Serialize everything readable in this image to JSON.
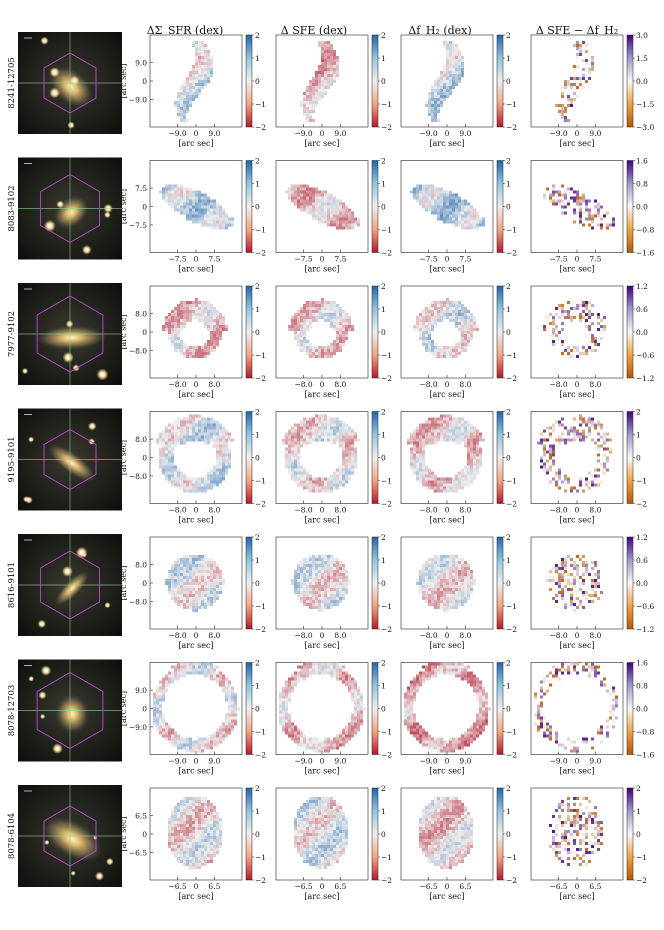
{
  "figure": {
    "column_headers": [
      "ΔΣ_SFR (dex)",
      "Δ SFE (dex)",
      "Δf_H₂ (dex)",
      "Δ SFE − Δf_H₂"
    ],
    "axis": {
      "xlabel": "[arc sec]",
      "ylabel": "[arc sec]"
    },
    "div_colorbar_ticks": [
      "2",
      "1",
      "0",
      "−1",
      "−2"
    ],
    "colors": {
      "diverging_low": "#b2182b",
      "diverging_mid": "#eeeeee",
      "diverging_high": "#2166ac",
      "puor_low": "#b35806",
      "puor_mid": "#f7f7f7",
      "puor_high": "#3f007d",
      "crosshair": "#8fd68f",
      "hexagon": "#b84fd0"
    },
    "rows": [
      {
        "id": "8241-12705",
        "ticks": [
          "−9.0",
          "0",
          "9.0"
        ],
        "ratio_ticks": [
          "3.0",
          "1.5",
          "0.0",
          "−1.5",
          "−3.0"
        ],
        "ratio_values": [
          3.0,
          1.5,
          0.0,
          -1.5,
          -3.0
        ]
      },
      {
        "id": "8083-9102",
        "ticks": [
          "−7.5",
          "0",
          "7.5"
        ],
        "ratio_ticks": [
          "1.6",
          "0.8",
          "0.0",
          "−0.8",
          "−1.6"
        ],
        "ratio_values": [
          1.6,
          0.8,
          0.0,
          -0.8,
          -1.6
        ]
      },
      {
        "id": "7977-9102",
        "ticks": [
          "−8.0",
          "0",
          "8.0"
        ],
        "ratio_ticks": [
          "1.2",
          "0.6",
          "0.0",
          "−0.6",
          "−1.2"
        ],
        "ratio_values": [
          1.2,
          0.6,
          0.0,
          -0.6,
          -1.2
        ]
      },
      {
        "id": "9195-9101",
        "ticks": [
          "−8.0",
          "0",
          "8.0"
        ],
        "ratio_ticks": [
          "2",
          "1",
          "0",
          "−1",
          "−2"
        ],
        "ratio_values": [
          2,
          1,
          0,
          -1,
          -2
        ]
      },
      {
        "id": "8616-9101",
        "ticks": [
          "−8.0",
          "0",
          "8.0"
        ],
        "ratio_ticks": [
          "1.2",
          "0.6",
          "0.0",
          "−0.6",
          "−1.2"
        ],
        "ratio_values": [
          1.2,
          0.6,
          0.0,
          -0.6,
          -1.2
        ]
      },
      {
        "id": "8078-12703",
        "ticks": [
          "−9.0",
          "0",
          "9.0"
        ],
        "ratio_ticks": [
          "1.6",
          "0.8",
          "0.0",
          "−0.8",
          "−1.6"
        ],
        "ratio_values": [
          1.6,
          0.8,
          0.0,
          -0.8,
          -1.6
        ]
      },
      {
        "id": "8078-6104",
        "ticks": [
          "−6.5",
          "0",
          "6.5"
        ],
        "ratio_ticks": [
          "2",
          "1",
          "0",
          "−1",
          "−2"
        ],
        "ratio_values": [
          2,
          1,
          0,
          -1,
          -2
        ]
      }
    ]
  }
}
